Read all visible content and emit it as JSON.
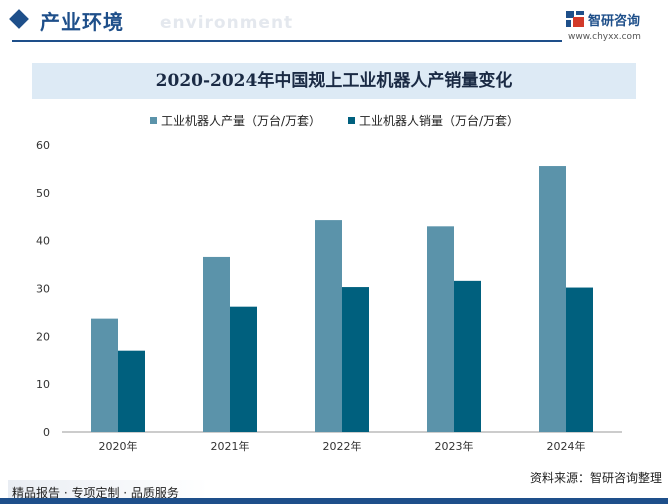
{
  "header": {
    "section_title": "产业环境",
    "section_en": "environment",
    "logo_name": "智研咨询",
    "logo_url": "www.chyxx.com"
  },
  "footer": {
    "left": "精品报告 · 专项定制 · 品质服务",
    "right": "资料来源：智研咨询整理"
  },
  "colors": {
    "brand": "#1e4f8a",
    "production": "#5b93aa",
    "sales": "#00607e",
    "title_band": "#ddeaf5"
  },
  "chart_data": {
    "type": "bar",
    "title": "2020-2024年中国规上工业机器人产销量变化",
    "categories": [
      "2020年",
      "2021年",
      "2022年",
      "2023年",
      "2024年"
    ],
    "series": [
      {
        "name": "工业机器人产量（万台/万套）",
        "values": [
          23.7,
          36.6,
          44.3,
          43.0,
          55.6
        ],
        "color": "#5b93aa"
      },
      {
        "name": "工业机器人销量（万台/万套）",
        "values": [
          17.0,
          26.2,
          30.3,
          31.6,
          30.2
        ],
        "color": "#00607e"
      }
    ],
    "ylim": [
      0,
      60
    ],
    "yticks": [
      "0",
      "10",
      "20",
      "30",
      "40",
      "50",
      "60"
    ],
    "legend_position": "top",
    "grid": false
  }
}
